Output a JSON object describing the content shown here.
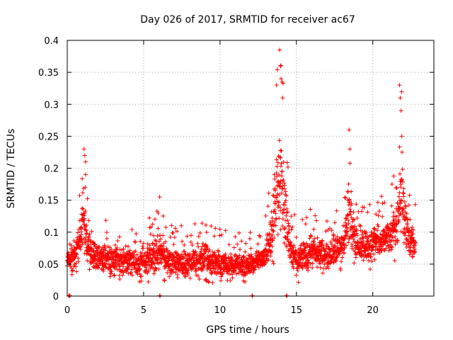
{
  "chart_data": {
    "type": "scatter",
    "title": "Day 026 of 2017, SRMTID for receiver ac67",
    "xlabel": "GPS time / hours",
    "ylabel": "SRMTID / TECUs",
    "xlim": [
      0,
      24
    ],
    "ylim": [
      0,
      0.4
    ],
    "x_ticks": [
      0,
      5,
      10,
      15,
      20
    ],
    "x_tick_labels": [
      "0",
      "5",
      "10",
      "15",
      "20"
    ],
    "y_ticks": [
      0,
      0.05,
      0.1,
      0.15,
      0.2,
      0.25,
      0.3,
      0.35,
      0.4
    ],
    "y_tick_labels": [
      "0",
      "0.05",
      "0.1",
      "0.15",
      "0.2",
      "0.25",
      "0.3",
      "0.35",
      "0.4"
    ],
    "grid": true,
    "marker": "+",
    "series": [
      {
        "name": "SRMTID",
        "color": "#ff0000",
        "envelope": {
          "hours": [
            0,
            0.5,
            1.0,
            1.5,
            2,
            3,
            4,
            5,
            6,
            7,
            8,
            9,
            10,
            11,
            12,
            12.8,
            13.3,
            13.6,
            13.9,
            14.2,
            14.6,
            15,
            16,
            17,
            18,
            18.5,
            19,
            20,
            21,
            21.5,
            21.9,
            22.3,
            22.8
          ],
          "min": [
            0.03,
            0.03,
            0.05,
            0.03,
            0.03,
            0.02,
            0.02,
            0.02,
            0.02,
            0.02,
            0.02,
            0.02,
            0.02,
            0.02,
            0.02,
            0.03,
            0.04,
            0.05,
            0.06,
            0.05,
            0.03,
            0.02,
            0.03,
            0.03,
            0.04,
            0.05,
            0.04,
            0.04,
            0.05,
            0.05,
            0.06,
            0.05,
            0.03
          ],
          "max": [
            0.1,
            0.11,
            0.23,
            0.14,
            0.12,
            0.12,
            0.12,
            0.11,
            0.155,
            0.11,
            0.11,
            0.13,
            0.11,
            0.1,
            0.1,
            0.12,
            0.18,
            0.33,
            0.385,
            0.34,
            0.15,
            0.12,
            0.14,
            0.12,
            0.15,
            0.26,
            0.14,
            0.16,
            0.17,
            0.2,
            0.33,
            0.18,
            0.15
          ]
        },
        "spikes": [
          {
            "x": 1.1,
            "y": 0.23
          },
          {
            "x": 1.15,
            "y": 0.22
          },
          {
            "x": 1.2,
            "y": 0.21
          },
          {
            "x": 1.2,
            "y": 0.19
          },
          {
            "x": 6.05,
            "y": 0.155
          },
          {
            "x": 13.7,
            "y": 0.33
          },
          {
            "x": 13.9,
            "y": 0.385
          },
          {
            "x": 13.95,
            "y": 0.36
          },
          {
            "x": 14.0,
            "y": 0.34
          },
          {
            "x": 14.1,
            "y": 0.31
          },
          {
            "x": 18.45,
            "y": 0.26
          },
          {
            "x": 18.5,
            "y": 0.23
          },
          {
            "x": 21.75,
            "y": 0.33
          },
          {
            "x": 21.8,
            "y": 0.31
          },
          {
            "x": 21.85,
            "y": 0.29
          },
          {
            "x": 21.9,
            "y": 0.25
          }
        ],
        "zero_points": [
          0.1,
          0.15,
          6.05,
          12.1,
          14.35
        ]
      }
    ]
  }
}
